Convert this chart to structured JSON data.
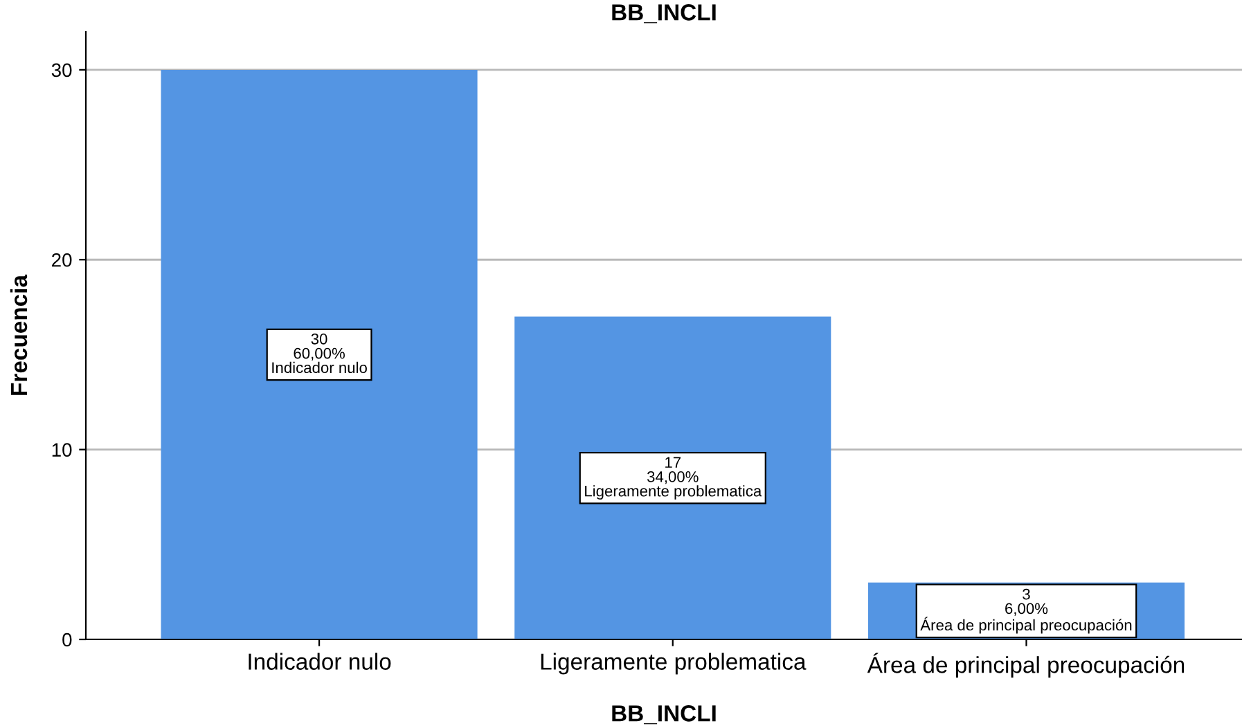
{
  "chart_data": {
    "type": "bar",
    "title": "BB_INCLI",
    "xlabel": "BB_INCLI",
    "ylabel": "Frecuencia",
    "categories": [
      "Indicador nulo",
      "Ligeramente problematica",
      "Área de principal preocupación"
    ],
    "values": [
      30,
      17,
      3
    ],
    "color": "#5495e3",
    "value_labels": [
      "30\n60,00%\nIndicador nulo",
      "17\n34,00%\nLigeramente problematica",
      "3\n6,00%\nÁrea de principal preocupación"
    ],
    "ylim": [
      0,
      32
    ],
    "yticks": [
      0,
      10,
      20,
      30
    ],
    "grid": "y",
    "legend": false
  }
}
